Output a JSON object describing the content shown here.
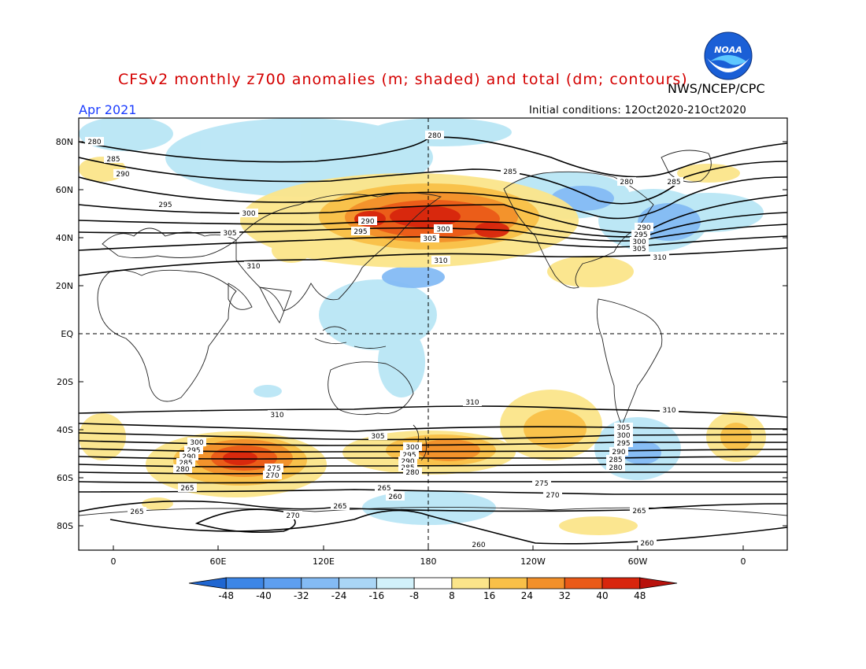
{
  "header": {
    "title": "CFSv2 monthly z700 anomalies (m; shaded) and total (dm; contours)",
    "agency": "NWS/NCEP/CPC",
    "month": "Apr 2021",
    "initial_conditions": "Initial conditions: 12Oct2020-21Oct2020",
    "logo_text": "NOAA"
  },
  "axes": {
    "lat_labels": [
      "80N",
      "60N",
      "40N",
      "20N",
      "EQ",
      "20S",
      "40S",
      "60S",
      "80S"
    ],
    "lon_labels": [
      "0",
      "60E",
      "120E",
      "180",
      "120W",
      "60W",
      "0"
    ]
  },
  "colorbar": {
    "labels": [
      "-48",
      "-40",
      "-32",
      "-24",
      "-16",
      "-8",
      "8",
      "16",
      "24",
      "32",
      "40",
      "48"
    ],
    "colors": [
      "#1f66d1",
      "#3d86e6",
      "#5e9ff0",
      "#84bbf4",
      "#aad6f6",
      "#d2f1fa",
      "#ffffff",
      "#fbe58a",
      "#f9c048",
      "#f2902a",
      "#ea5a18",
      "#d8260d",
      "#b8120c"
    ]
  },
  "contour_labels": {
    "values": [
      "280",
      "285",
      "290",
      "295",
      "300",
      "305",
      "310",
      "305",
      "300",
      "295",
      "290",
      "285",
      "280",
      "275",
      "270",
      "265",
      "260"
    ]
  },
  "colors": {
    "title": "#d40000",
    "month": "#1a3cff"
  }
}
